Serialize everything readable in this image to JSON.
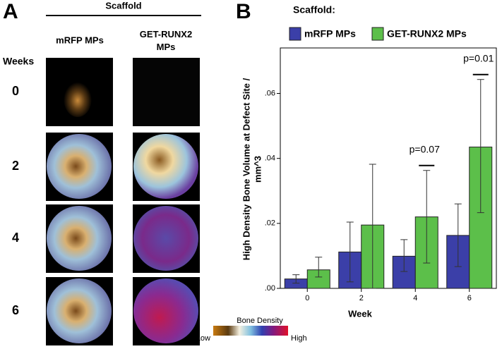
{
  "panel_a": {
    "label": "A",
    "header": "Scaffold",
    "columns": [
      "mRFP MPs",
      "GET-RUNX2 MPs"
    ],
    "row_header": "Weeks",
    "rows": [
      "0",
      "2",
      "4",
      "6"
    ],
    "colorbar": {
      "title": "Bone Density",
      "low": "Low",
      "high": "High"
    }
  },
  "chart_data": {
    "type": "bar",
    "panel_label": "B",
    "legend_title": "Scaffold:",
    "xlabel": "Week",
    "ylabel_lines": [
      "High Density Bone Volume at Defect Site /",
      "mm^3"
    ],
    "categories": [
      "0",
      "2",
      "4",
      "6"
    ],
    "series": [
      {
        "name": "mRFP MPs",
        "color": "#3b3fa8",
        "values": [
          0.0029,
          0.0112,
          0.0099,
          0.0163
        ],
        "ci_low": [
          0.0016,
          0.002,
          0.0052,
          0.0067
        ],
        "ci_high": [
          0.0042,
          0.0204,
          0.015,
          0.026
        ]
      },
      {
        "name": "GET-RUNX2 MPs",
        "color": "#5cbf4a",
        "values": [
          0.0057,
          0.0195,
          0.022,
          0.0435
        ],
        "ci_low": [
          0.0035,
          0.0,
          0.0078,
          0.0233
        ],
        "ci_high": [
          0.0096,
          0.0382,
          0.0363,
          0.0643
        ]
      }
    ],
    "annotations": [
      "p=0.07",
      "p=0.01"
    ],
    "ylim": [
      0,
      0.074
    ],
    "yticks": [
      {
        "value": 0,
        "label": ".00"
      },
      {
        "value": 0.02,
        "label": ".02"
      },
      {
        "value": 0.04,
        "label": ".04"
      },
      {
        "value": 0.06,
        "label": ".06"
      }
    ]
  }
}
